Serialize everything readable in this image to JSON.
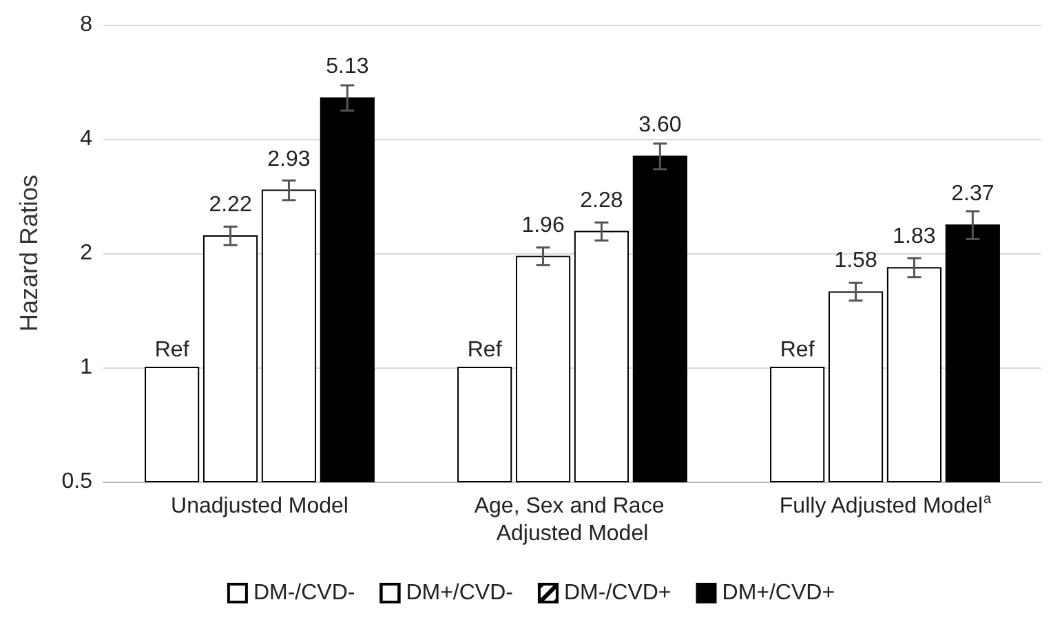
{
  "chart_data": {
    "type": "bar",
    "ylabel": "Hazard Ratios",
    "log": "y",
    "ylim": [
      0.5,
      8
    ],
    "yticks": [
      0.5,
      1,
      2,
      4,
      8
    ],
    "grid": "y",
    "legend": "bottom",
    "categories": [
      "Unadjusted Model",
      "Age, Sex and Race Adjusted Model",
      "Fully Adjusted Model$^{a}$"
    ],
    "series": [
      {
        "name": "DM-/CVD-",
        "color": "#ffffff",
        "values": [
          1,
          1,
          1
        ],
        "value_labels": [
          "Ref",
          "Ref",
          "Ref"
        ]
      },
      {
        "name": "DM+/CVD-",
        "color": "#ffffff",
        "values": [
          2.22,
          1.96,
          1.58
        ],
        "value_labels": [
          "2.22",
          "1.96",
          "1.58"
        ],
        "errors": [
          [
            2.1,
            2.35
          ],
          [
            1.86,
            2.07
          ],
          [
            1.5,
            1.67
          ]
        ]
      },
      {
        "name": "DM-/CVD+",
        "color": "#ffffff",
        "values": [
          2.93,
          2.28,
          1.83
        ],
        "value_labels": [
          "2.93",
          "2.28",
          "1.83"
        ],
        "errors": [
          [
            2.76,
            3.11
          ],
          [
            2.16,
            2.41
          ],
          [
            1.73,
            1.94
          ]
        ]
      },
      {
        "name": "DM+/CVD+",
        "color": "#000000",
        "values": [
          5.13,
          3.6,
          2.37
        ],
        "value_labels": [
          "5.13",
          "3.60",
          "2.37"
        ],
        "errors": [
          [
            4.75,
            5.54
          ],
          [
            3.33,
            3.89
          ],
          [
            2.18,
            2.58
          ]
        ]
      }
    ]
  }
}
